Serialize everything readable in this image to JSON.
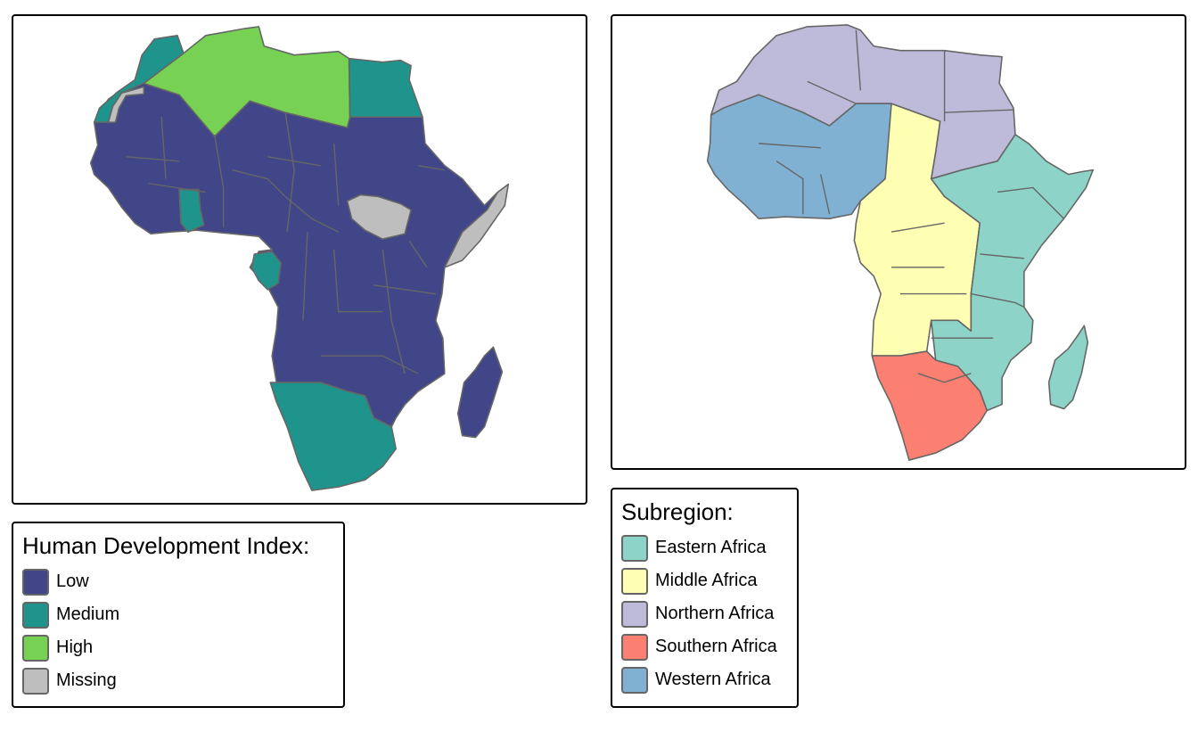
{
  "colors": {
    "hdi_low": "#404688",
    "hdi_medium": "#1f948c",
    "hdi_high": "#77d153",
    "hdi_missing": "#bebebe",
    "eastern": "#8dd3c7",
    "middle": "#ffffb3",
    "northern": "#bebada",
    "southern": "#fb8072",
    "western": "#80b1d3",
    "border": "#666666"
  },
  "maps": {
    "hdi": {
      "legend_title": "Human Development Index:",
      "legend": [
        {
          "label": "Low",
          "color": "#404688"
        },
        {
          "label": "Medium",
          "color": "#1f948c"
        },
        {
          "label": "High",
          "color": "#77d153"
        },
        {
          "label": "Missing",
          "color": "#bebebe"
        }
      ]
    },
    "subregion": {
      "legend_title": "Subregion:",
      "legend": [
        {
          "label": "Eastern Africa",
          "color": "#8dd3c7"
        },
        {
          "label": "Middle Africa",
          "color": "#ffffb3"
        },
        {
          "label": "Northern Africa",
          "color": "#bebada"
        },
        {
          "label": "Southern Africa",
          "color": "#fb8072"
        },
        {
          "label": "Western Africa",
          "color": "#80b1d3"
        }
      ]
    }
  }
}
